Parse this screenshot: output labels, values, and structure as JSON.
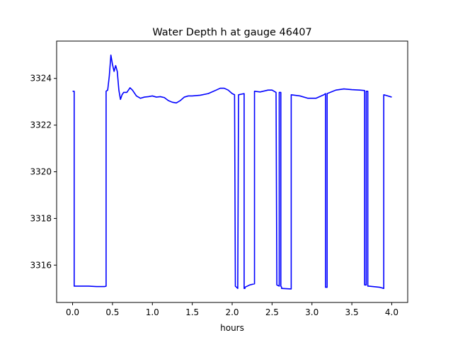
{
  "chart_data": {
    "type": "line",
    "title": "Water Depth h at gauge 46407",
    "xlabel": "hours",
    "ylabel": "",
    "xlim": [
      -0.2,
      4.2
    ],
    "ylim": [
      3314.4,
      3325.6
    ],
    "xticks": [
      0.0,
      0.5,
      1.0,
      1.5,
      2.0,
      2.5,
      3.0,
      3.5,
      4.0
    ],
    "xtick_labels": [
      "0.0",
      "0.5",
      "1.0",
      "1.5",
      "2.0",
      "2.5",
      "3.0",
      "3.5",
      "4.0"
    ],
    "yticks": [
      3316,
      3318,
      3320,
      3322,
      3324
    ],
    "ytick_labels": [
      "3316",
      "3318",
      "3320",
      "3322",
      "3324"
    ],
    "grid": false,
    "series": [
      {
        "name": "",
        "color": "#0000ff",
        "x": [
          0.0,
          0.02,
          0.02,
          0.2,
          0.3,
          0.4,
          0.42,
          0.42,
          0.44,
          0.46,
          0.48,
          0.5,
          0.52,
          0.54,
          0.56,
          0.58,
          0.6,
          0.62,
          0.64,
          0.68,
          0.72,
          0.75,
          0.8,
          0.85,
          0.9,
          0.95,
          1.0,
          1.05,
          1.1,
          1.15,
          1.2,
          1.25,
          1.3,
          1.35,
          1.4,
          1.45,
          1.5,
          1.6,
          1.7,
          1.8,
          1.85,
          1.9,
          1.95,
          2.0,
          2.03,
          2.04,
          2.04,
          2.07,
          2.08,
          2.08,
          2.15,
          2.15,
          2.16,
          2.16,
          2.22,
          2.28,
          2.28,
          2.35,
          2.45,
          2.5,
          2.55,
          2.56,
          2.56,
          2.59,
          2.59,
          2.61,
          2.61,
          2.62,
          2.62,
          2.74,
          2.74,
          2.85,
          2.95,
          3.05,
          3.15,
          3.17,
          3.17,
          3.19,
          3.19,
          3.3,
          3.4,
          3.5,
          3.6,
          3.66,
          3.66,
          3.68,
          3.68,
          3.7,
          3.7,
          3.71,
          3.71,
          3.85,
          3.9,
          3.9,
          4.0
        ],
        "y": [
          3323.45,
          3323.45,
          3315.1,
          3315.1,
          3315.08,
          3315.08,
          3315.1,
          3323.45,
          3323.5,
          3324.1,
          3325.0,
          3324.6,
          3324.3,
          3324.55,
          3324.3,
          3323.5,
          3323.1,
          3323.3,
          3323.4,
          3323.4,
          3323.6,
          3323.5,
          3323.25,
          3323.15,
          3323.2,
          3323.22,
          3323.25,
          3323.2,
          3323.22,
          3323.18,
          3323.05,
          3322.98,
          3322.95,
          3323.05,
          3323.2,
          3323.25,
          3323.25,
          3323.28,
          3323.35,
          3323.5,
          3323.58,
          3323.58,
          3323.5,
          3323.35,
          3323.3,
          3315.1,
          3315.1,
          3315.0,
          3323.3,
          3323.3,
          3323.35,
          3315.0,
          3315.0,
          3315.05,
          3315.15,
          3315.2,
          3323.45,
          3323.42,
          3323.5,
          3323.5,
          3323.4,
          3315.15,
          3315.15,
          3315.1,
          3323.4,
          3323.4,
          3315.1,
          3315.05,
          3315.0,
          3314.98,
          3323.3,
          3323.25,
          3323.15,
          3323.15,
          3323.3,
          3323.35,
          3315.05,
          3315.05,
          3323.35,
          3323.5,
          3323.55,
          3323.52,
          3323.5,
          3323.48,
          3315.15,
          3315.15,
          3323.45,
          3323.45,
          3315.1,
          3315.1,
          3315.1,
          3315.05,
          3315.0,
          3323.3,
          3323.2
        ]
      }
    ]
  }
}
